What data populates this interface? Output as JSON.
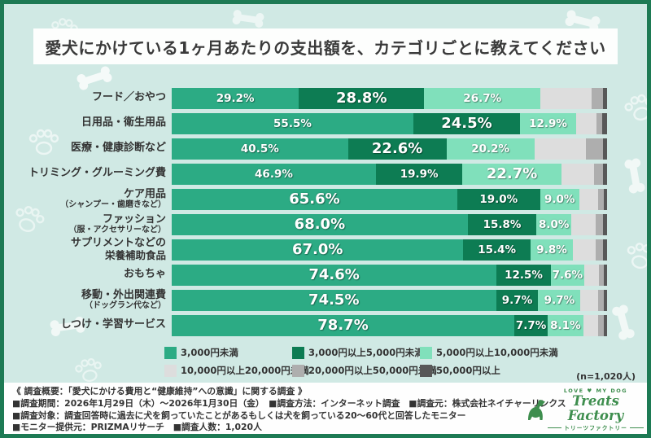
{
  "title": "愛犬にかけている1ヶ月あたりの支出額を、カテゴリごとに教えてください",
  "colors": {
    "frame_green": "#1d7a54",
    "background": "#d0e9e4",
    "title_box": "#fdfefd",
    "text_dark": "#333333",
    "logo_green": "#3e8e4e"
  },
  "icons": [
    "paw-print-icon",
    "bone-icon",
    "dog-logo-icon"
  ],
  "chart_data": {
    "type": "bar",
    "stacked": true,
    "orientation": "horizontal",
    "unit": "%",
    "xlim": [
      0,
      100
    ],
    "labeled_segments": 3,
    "unlabeled_values_estimated": true,
    "series_labels": [
      "3,000円未満",
      "3,000円以上5,000円未満",
      "5,000円以上10,000円未満",
      "10,000円以上20,000円未満",
      "20,000円以上50,000円未満",
      "50,000円以上"
    ],
    "series_colors": [
      "#2cab84",
      "#0d7c53",
      "#80e0bb",
      "#dddddd",
      "#aeaeae",
      "#585858"
    ],
    "rows": [
      {
        "label": "フード／おやつ",
        "sublabel": "",
        "sublabel_small": false,
        "values": [
          29.2,
          28.8,
          26.7,
          11.7,
          2.7,
          0.9
        ],
        "emphasis": 1
      },
      {
        "label": "日用品・衛生用品",
        "sublabel": "",
        "sublabel_small": false,
        "values": [
          55.5,
          24.5,
          12.9,
          4.6,
          1.4,
          1.1
        ],
        "emphasis": 1
      },
      {
        "label": "医療・健康診断など",
        "sublabel": "",
        "sublabel_small": false,
        "values": [
          40.5,
          22.6,
          20.2,
          11.8,
          3.9,
          1.0
        ],
        "emphasis": 1
      },
      {
        "label": "トリミング・グルーミング費",
        "sublabel": "",
        "sublabel_small": false,
        "values": [
          46.9,
          19.9,
          22.7,
          7.6,
          2.0,
          0.9
        ],
        "emphasis": 2
      },
      {
        "label": "ケア用品",
        "sublabel": "（シャンプー・歯磨きなど）",
        "sublabel_small": true,
        "values": [
          65.6,
          19.0,
          9.0,
          4.3,
          1.3,
          0.8
        ],
        "emphasis": 0
      },
      {
        "label": "ファッション",
        "sublabel": "（服・アクセサリーなど）",
        "sublabel_small": true,
        "values": [
          68.0,
          15.8,
          8.0,
          5.6,
          1.6,
          1.0
        ],
        "emphasis": 0
      },
      {
        "label": "サプリメントなどの",
        "sublabel": "栄養補助食品",
        "sublabel_small": false,
        "values": [
          67.0,
          15.4,
          9.8,
          5.2,
          1.6,
          1.0
        ],
        "emphasis": 0
      },
      {
        "label": "おもちゃ",
        "sublabel": "",
        "sublabel_small": false,
        "values": [
          74.6,
          12.5,
          7.6,
          3.4,
          1.1,
          0.8
        ],
        "emphasis": 0
      },
      {
        "label": "移動・外出関連費",
        "sublabel": "（ドッグラン代など）",
        "sublabel_small": true,
        "values": [
          74.5,
          9.7,
          9.7,
          4.0,
          1.3,
          0.8
        ],
        "emphasis": 0
      },
      {
        "label": "しつけ・学習サービス",
        "sublabel": "",
        "sublabel_small": false,
        "values": [
          78.7,
          7.7,
          8.1,
          3.5,
          1.2,
          0.8
        ],
        "emphasis": 0
      }
    ],
    "sample_note": "(n=1,020人)"
  },
  "legend": {
    "items": [
      {
        "label": "3,000円未満",
        "color": "#2cab84"
      },
      {
        "label": "3,000円以上5,000円未満",
        "color": "#0d7c53"
      },
      {
        "label": "5,000円以上10,000円未満",
        "color": "#80e0bb"
      },
      {
        "label": "10,000円以上20,000円未満",
        "color": "#dddddd"
      },
      {
        "label": "20,000円以上50,000円未満",
        "color": "#aeaeae"
      },
      {
        "label": "50,000円以上",
        "color": "#585858"
      }
    ]
  },
  "footer": {
    "line1": "《 調査概要：「愛犬にかける費用と“健康維持”への意識」に関する調査 》",
    "line2": "■調査期間：2026年1月29日（木）～2026年1月30日（金）　■調査方法：インターネット調査　■調査元：株式会社ネイチャーリンクス",
    "line3": "■調査対象：調査回答時に過去に犬を飼っていたことがあるもしくは犬を飼っている20～60代と回答したモニター",
    "line4": "■モニター提供元：PRIZMAリサーチ　■調査人数：1,020人"
  },
  "logo": {
    "tagline": "LOVE ♥ MY DOG",
    "name": "Treats Factory",
    "katakana": "トリーツファクトリー"
  }
}
